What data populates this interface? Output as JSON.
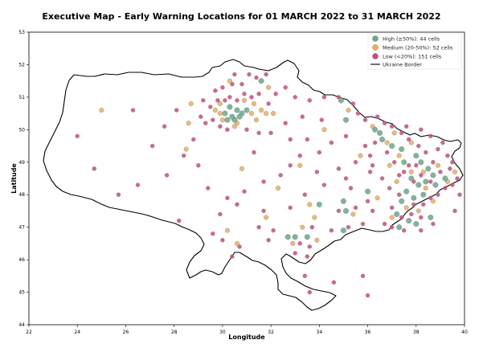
{
  "title": "Executive Map - Early Warning Locations for 01 MARCH 2022 to 31 MARCH 2022",
  "x_axis": {
    "label": "Longitude",
    "ticks": [
      "22",
      "24",
      "26",
      "28",
      "30",
      "32",
      "34",
      "36",
      "38",
      "40"
    ]
  },
  "y_axis": {
    "label": "Latitude",
    "ticks": [
      "44",
      "45",
      "46",
      "47",
      "48",
      "49",
      "50",
      "51",
      "52",
      "53"
    ]
  },
  "legend": [
    {
      "label": "High (≥50%): 44 cells",
      "color": "#6aa889"
    },
    {
      "label": "Medium (20-50%): 52 cells",
      "color": "#f0ad5c"
    },
    {
      "label": "Low (<20%): 151 cells",
      "color": "#d2487a"
    },
    {
      "label": "Ukraine Border",
      "color": "#000000"
    }
  ],
  "chart_data": {
    "type": "scatter",
    "title": "Executive Map - Early Warning Locations for 01 MARCH 2022 to 31 MARCH 2022",
    "xlabel": "Longitude",
    "ylabel": "Latitude",
    "xlim": [
      22,
      40
    ],
    "ylim": [
      44,
      53
    ],
    "series": [
      {
        "name": "High (≥50%): 44 cells",
        "color": "#6aa889",
        "points": [
          [
            30.1,
            50.5
          ],
          [
            30.4,
            50.4
          ],
          [
            30.6,
            50.6
          ],
          [
            30.3,
            50.7
          ],
          [
            30.8,
            50.5
          ],
          [
            30.5,
            50.3
          ],
          [
            31.0,
            50.6
          ],
          [
            30.2,
            50.3
          ],
          [
            34.9,
            50.9
          ],
          [
            35.1,
            50.3
          ],
          [
            36.3,
            50.0
          ],
          [
            36.5,
            49.9
          ],
          [
            37.0,
            49.5
          ],
          [
            37.4,
            49.4
          ],
          [
            38.0,
            49.2
          ],
          [
            38.2,
            49.0
          ],
          [
            38.5,
            48.8
          ],
          [
            38.7,
            48.6
          ],
          [
            37.8,
            48.5
          ],
          [
            38.1,
            48.3
          ],
          [
            37.6,
            48.1
          ],
          [
            37.9,
            47.9
          ],
          [
            38.3,
            48.0
          ],
          [
            37.4,
            47.8
          ],
          [
            37.2,
            47.4
          ],
          [
            37.7,
            47.2
          ],
          [
            38.0,
            47.1
          ],
          [
            35.0,
            47.8
          ],
          [
            35.1,
            47.5
          ],
          [
            35.0,
            46.9
          ],
          [
            33.5,
            46.7
          ],
          [
            33.0,
            46.7
          ],
          [
            32.7,
            46.7
          ],
          [
            38.4,
            48.4
          ],
          [
            38.8,
            48.3
          ],
          [
            36.6,
            49.7
          ],
          [
            37.5,
            49.0
          ],
          [
            39.2,
            48.5
          ],
          [
            30.7,
            50.4
          ],
          [
            38.6,
            47.3
          ],
          [
            36.0,
            48.1
          ],
          [
            37.3,
            47.0
          ],
          [
            31.6,
            51.5
          ],
          [
            34.0,
            47.7
          ]
        ]
      },
      {
        "name": "Medium (20-50%): 52 cells",
        "color": "#f0ad5c",
        "points": [
          [
            29.9,
            50.5
          ],
          [
            30.0,
            50.3
          ],
          [
            30.6,
            50.2
          ],
          [
            31.2,
            50.5
          ],
          [
            31.6,
            50.6
          ],
          [
            31.8,
            50.5
          ],
          [
            31.3,
            50.8
          ],
          [
            30.9,
            50.9
          ],
          [
            28.6,
            50.2
          ],
          [
            28.7,
            50.8
          ],
          [
            25.0,
            50.6
          ],
          [
            36.2,
            50.1
          ],
          [
            36.8,
            49.6
          ],
          [
            37.3,
            49.2
          ],
          [
            37.8,
            48.7
          ],
          [
            38.4,
            48.2
          ],
          [
            37.6,
            47.6
          ],
          [
            38.1,
            47.5
          ],
          [
            37.0,
            47.3
          ],
          [
            35.4,
            47.4
          ],
          [
            33.8,
            47.3
          ],
          [
            33.3,
            47.0
          ],
          [
            32.9,
            46.5
          ],
          [
            30.6,
            46.5
          ],
          [
            31.8,
            47.3
          ],
          [
            30.8,
            48.8
          ],
          [
            33.2,
            48.9
          ],
          [
            34.2,
            50.0
          ],
          [
            30.3,
            51.5
          ],
          [
            31.9,
            51.3
          ],
          [
            38.9,
            48.9
          ],
          [
            39.3,
            48.4
          ],
          [
            38.3,
            48.7
          ],
          [
            37.2,
            48.4
          ],
          [
            36.4,
            47.9
          ],
          [
            30.5,
            50.1
          ],
          [
            29.7,
            50.6
          ],
          [
            31.4,
            50.3
          ],
          [
            32.1,
            50.5
          ],
          [
            29.9,
            50.8
          ],
          [
            36.9,
            48.9
          ],
          [
            33.6,
            47.7
          ],
          [
            38.7,
            47.8
          ],
          [
            37.8,
            49.6
          ],
          [
            28.5,
            49.4
          ],
          [
            32.3,
            48.2
          ],
          [
            35.7,
            49.2
          ],
          [
            39.6,
            48.7
          ],
          [
            37.1,
            49.9
          ],
          [
            33.9,
            46.6
          ],
          [
            35.2,
            50.6
          ],
          [
            30.2,
            46.9
          ]
        ]
      },
      {
        "name": "Low (<20%): 151 cells",
        "color": "#d2487a",
        "points": [
          [
            24.0,
            49.8
          ],
          [
            26.3,
            50.6
          ],
          [
            24.7,
            48.8
          ],
          [
            28.4,
            49.2
          ],
          [
            28.2,
            47.2
          ],
          [
            29.4,
            48.2
          ],
          [
            30.0,
            46.6
          ],
          [
            30.7,
            46.4
          ],
          [
            29.2,
            50.9
          ],
          [
            29.5,
            50.7
          ],
          [
            29.8,
            50.9
          ],
          [
            30.1,
            50.9
          ],
          [
            30.3,
            51.0
          ],
          [
            30.6,
            50.9
          ],
          [
            30.9,
            51.1
          ],
          [
            31.2,
            51.0
          ],
          [
            31.5,
            51.1
          ],
          [
            31.1,
            51.7
          ],
          [
            30.4,
            51.4
          ],
          [
            31.8,
            51.7
          ],
          [
            32.2,
            51.1
          ],
          [
            32.6,
            51.3
          ],
          [
            33.0,
            51.0
          ],
          [
            33.6,
            50.9
          ],
          [
            34.2,
            51.0
          ],
          [
            29.1,
            50.4
          ],
          [
            29.3,
            50.2
          ],
          [
            29.6,
            50.3
          ],
          [
            29.9,
            50.1
          ],
          [
            30.2,
            50.0
          ],
          [
            31.0,
            50.0
          ],
          [
            31.5,
            49.9
          ],
          [
            32.0,
            49.9
          ],
          [
            32.8,
            49.7
          ],
          [
            33.5,
            49.7
          ],
          [
            34.5,
            49.6
          ],
          [
            35.1,
            49.8
          ],
          [
            34.0,
            49.3
          ],
          [
            35.5,
            49.0
          ],
          [
            36.1,
            48.7
          ],
          [
            35.1,
            48.5
          ],
          [
            34.2,
            48.3
          ],
          [
            33.4,
            48.0
          ],
          [
            32.8,
            47.6
          ],
          [
            31.5,
            47.0
          ],
          [
            32.1,
            46.9
          ],
          [
            31.9,
            46.6
          ],
          [
            33.2,
            46.5
          ],
          [
            33.6,
            46.4
          ],
          [
            35.2,
            47.0
          ],
          [
            35.8,
            47.1
          ],
          [
            36.2,
            47.5
          ],
          [
            36.7,
            47.1
          ],
          [
            37.0,
            47.6
          ],
          [
            37.4,
            47.3
          ],
          [
            37.8,
            47.4
          ],
          [
            38.2,
            47.3
          ],
          [
            37.0,
            47.0
          ],
          [
            37.5,
            46.9
          ],
          [
            37.9,
            47.7
          ],
          [
            38.3,
            47.7
          ],
          [
            38.6,
            47.9
          ],
          [
            38.9,
            48.0
          ],
          [
            39.2,
            48.2
          ],
          [
            39.5,
            48.3
          ],
          [
            39.7,
            48.5
          ],
          [
            39.4,
            48.8
          ],
          [
            39.0,
            48.7
          ],
          [
            38.7,
            49.0
          ],
          [
            38.4,
            49.3
          ],
          [
            38.1,
            49.5
          ],
          [
            37.7,
            49.7
          ],
          [
            37.4,
            49.9
          ],
          [
            37.0,
            50.1
          ],
          [
            36.7,
            50.2
          ],
          [
            36.4,
            50.4
          ],
          [
            35.9,
            50.3
          ],
          [
            35.6,
            50.5
          ],
          [
            35.4,
            50.8
          ],
          [
            34.8,
            51.0
          ],
          [
            36.3,
            49.6
          ],
          [
            36.8,
            49.3
          ],
          [
            37.1,
            49.0
          ],
          [
            37.5,
            48.7
          ],
          [
            37.9,
            48.4
          ],
          [
            38.2,
            48.6
          ],
          [
            38.6,
            48.4
          ],
          [
            37.3,
            48.0
          ],
          [
            36.9,
            48.2
          ],
          [
            36.6,
            48.5
          ],
          [
            36.2,
            48.9
          ],
          [
            35.9,
            49.5
          ],
          [
            36.1,
            49.2
          ],
          [
            37.6,
            50.1
          ],
          [
            38.2,
            50.0
          ],
          [
            38.6,
            49.8
          ],
          [
            39.1,
            49.6
          ],
          [
            39.3,
            49.2
          ],
          [
            39.5,
            49.0
          ],
          [
            38.9,
            49.4
          ],
          [
            38.0,
            48.9
          ],
          [
            37.7,
            48.9
          ],
          [
            37.3,
            48.6
          ],
          [
            34.1,
            50.3
          ],
          [
            33.3,
            50.4
          ],
          [
            32.6,
            50.2
          ],
          [
            31.9,
            50.8
          ],
          [
            30.5,
            51.7
          ],
          [
            30.8,
            51.4
          ],
          [
            31.4,
            51.6
          ],
          [
            29.7,
            51.2
          ],
          [
            30.0,
            51.3
          ],
          [
            33.2,
            49.2
          ],
          [
            32.4,
            48.6
          ],
          [
            31.7,
            48.4
          ],
          [
            30.9,
            48.1
          ],
          [
            30.2,
            47.9
          ],
          [
            29.9,
            47.4
          ],
          [
            29.0,
            48.9
          ],
          [
            28.8,
            49.7
          ],
          [
            28.1,
            50.6
          ],
          [
            27.6,
            50.1
          ],
          [
            27.1,
            49.5
          ],
          [
            33.7,
            47.0
          ],
          [
            34.5,
            46.9
          ],
          [
            34.8,
            47.5
          ],
          [
            35.5,
            47.6
          ],
          [
            36.0,
            47.8
          ],
          [
            30.4,
            46.1
          ],
          [
            33.0,
            46.2
          ],
          [
            33.5,
            46.1
          ],
          [
            34.6,
            45.3
          ],
          [
            33.6,
            45.0
          ],
          [
            33.4,
            45.5
          ],
          [
            35.8,
            45.5
          ],
          [
            36.0,
            44.9
          ],
          [
            31.3,
            49.3
          ],
          [
            32.8,
            48.9
          ],
          [
            33.9,
            48.7
          ],
          [
            34.8,
            48.8
          ],
          [
            35.3,
            48.2
          ],
          [
            39.8,
            48.0
          ],
          [
            39.6,
            47.5
          ],
          [
            38.7,
            47.1
          ],
          [
            38.2,
            46.9
          ],
          [
            31.7,
            47.5
          ],
          [
            30.6,
            47.7
          ],
          [
            29.6,
            46.8
          ],
          [
            26.5,
            48.3
          ],
          [
            25.7,
            48.0
          ],
          [
            27.7,
            48.6
          ]
        ]
      }
    ]
  }
}
